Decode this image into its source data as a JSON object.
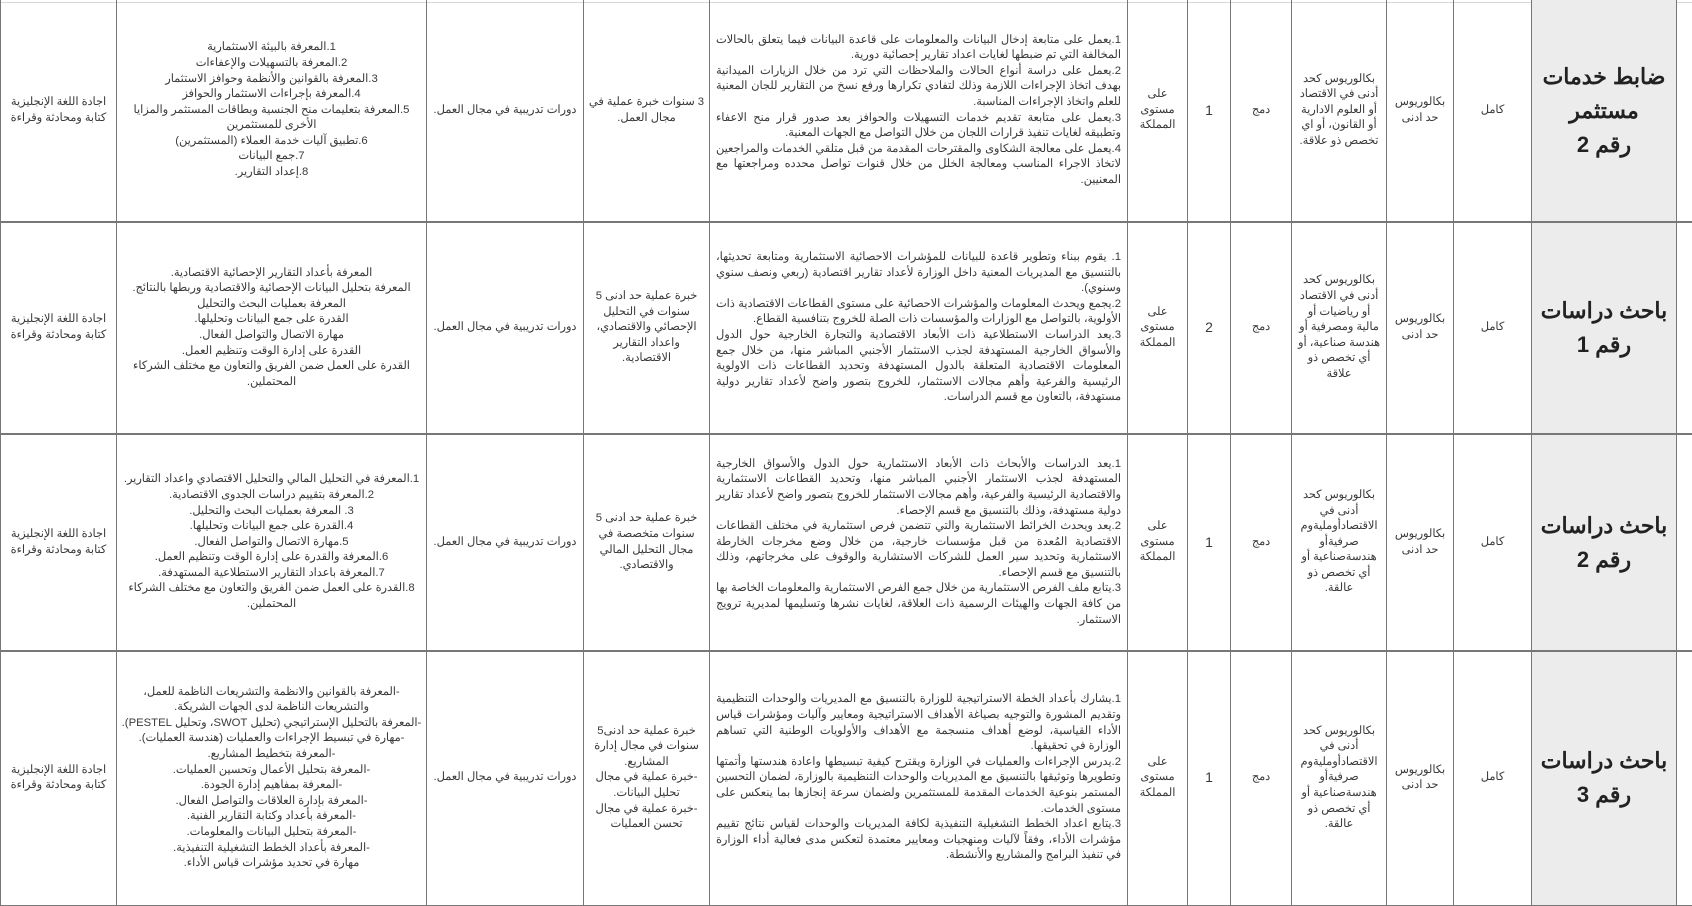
{
  "colors": {
    "title_bg": "#ececec",
    "border": "#777777",
    "text": "#3a3a3a"
  },
  "rows": [
    {
      "title_lines": [
        "ضابط خدمات",
        "مستثمر",
        "رقم 2"
      ],
      "type": "كامل",
      "qualification": "بكالوريوس حد ادنى",
      "specialization": "بكالوريوس كحد أدنى في الاقتصاد أو العلوم الادارية أو القانون، أو اي تخصص ذو علاقة.",
      "merge": "دمج",
      "count": "1",
      "location": "على مستوى المملكة",
      "tasks": [
        "1.يعمل على متابعة إدخال البيانات والمعلومات على قاعدة البيانات فيما يتعلق بالحالات المخالفة التي تم ضبطها لغايات اعداد تقارير إحصائية دورية.",
        "2.يعمل على دراسة أنواع الحالات والملاحظات التي ترد من خلال الزيارات الميدانية بهدف اتخاذ الإجراءات اللازمة وذلك لتفادي تكرارها ورفع نسخ من التقارير للجان المعنية للعلم واتخاذ الإجراءات المناسبة.",
        "3.يعمل على متابعة تقديم خدمات التسهيلات والحوافز بعد صدور قرار منح الاعفاء وتطبيقه لغايات تنفيذ قرارات اللجان من خلال التواصل مع الجهات المعنية.",
        "4.يعمل  على معالجة الشكاوى والمقترحات المقدمة من قبل متلقي الخدمات والمراجعين لاتخاذ الاجراء المناسب ومعالجة الخلل من خلال قنوات تواصل محدده ومراجعتها مع المعنيين."
      ],
      "experience": [
        "3 سنوات خبرة عملية في مجال العمل."
      ],
      "training": "دورات تدريبية في مجال العمل.",
      "skills": [
        "1.المعرفة بالبيئة الاستثمارية",
        "2.المعرفة بالتسهيلات والإعفاءات",
        "3.المعرفة بالقوانين والأنظمة وحوافز الاستثمار",
        "4.المعرفة بإجراءات الاستثمار والحوافز",
        "5.المعرفة بتعليمات منح الجنسية وبطاقات المستثمر والمزايا الأخرى للمستثمرين",
        "6.تطبيق آليات خدمة العملاء (المستثمرين)",
        "7.جمع البيانات",
        "8.إعداد التقارير."
      ],
      "language": "اجادة اللغة الإنجليزية كتابة ومحادثة وقراءة"
    },
    {
      "title_lines": [
        "باحث دراسات",
        "رقم 1"
      ],
      "type": "كامل",
      "qualification": "بكالوريوس حد ادنى",
      "specialization": "بكالوريوس كحد أدنى في الاقتصاد أو رياضيات أو مالية ومصرفية أو هندسة صناعية، أو أي تخصص ذو علاقة",
      "merge": "دمج",
      "count": "2",
      "location": "على مستوى المملكة",
      "tasks": [
        "1. يقوم ببناء وتطوير قاعدة للبيانات للمؤشرات الاحصائية الاستثمارية ومتابعة تحديثها، بالتنسيق مع المديريات المعنية داخل الوزارة لأعداد تقارير اقتصادية (ربعي ونصف سنوي وسنوي).",
        "2.يجمع ويحدث المعلومات والمؤشرات الاحصائية على مستوى القطاعات الاقتصادية ذات الأولوية، بالتواصل مع الوزارات والمؤسسات ذات الصلة للخروج بتنافسية القطاع.",
        "3.يعد الدراسات الاستطلاعية ذات الأبعاد الاقتصادية والتجارة الخارجية حول الدول والأسواق الخارجية المستهدفة لجذب الاستثمار الأجنبي المباشر منها، من خلال جمع المعلومات الاقتصادية المتعلقة بالدول المستهدفة وتحديد القطاعات ذات الاولوية الرئيسية والفرعية وأهم مجالات الاستثمار، للخروج بتصور واضح لأعداد تقارير دولية مستهدفة، بالتعاون مع قسم الدراسات."
      ],
      "experience": [
        "خبرة عملية حد ادنى 5 سنوات في التحليل الإحصائي والاقتصادي، واعداد التقارير الاقتصادية."
      ],
      "training": "دورات تدريبية في مجال العمل.",
      "skills": [
        "المعرفة بأعداد التقارير الإحصائية الاقتصادية.",
        "المعرفة بتحليل البيانات الإحصائية والاقتصادية وربطها بالنتائج.",
        "المعرفة بعمليات البحث والتحليل",
        "القدرة على جمع البيانات وتحليلها.",
        "مهارة الاتصال والتواصل الفعال.",
        "القدرة على إدارة الوقت وتنظيم العمل.",
        "القدرة على العمل ضمن الفريق والتعاون مع مختلف الشركاء المحتملين."
      ],
      "language": "اجادة اللغة الإنجليزية كتابة ومحادثة وقراءة"
    },
    {
      "title_lines": [
        "باحث دراسات",
        "رقم 2"
      ],
      "type": "كامل",
      "qualification": "بكالوريوس حد ادنى",
      "specialization": "بكالوريوس كحد أدنى في الاقتصادأومليةوم صرفيةأو هندسةصناعية أو أي تخصص ذو عالقة.",
      "merge": "دمج",
      "count": "1",
      "location": "على مستوى المملكة",
      "tasks": [
        "1.يعد الدراسات والأبحاث ذات الأبعاد الاستثمارية حول الدول والأسواق الخارجية المستهدفة لجذب الاستثمار الأجنبي المباشر منها، وتحديد القطاعات الاستثمارية والاقتصادية الرئيسية والفرعية، وأهم مجالات الاستثمار للخروج بتصور واضح لأعداد تقارير دولية مستهدفة، وذلك بالتنسيق مع قسم الإحصاء.",
        "2.يعد ويحدث الخرائط الاستثمارية والتي تتضمن فرص استثمارية في مختلف القطاعات الاقتصادية المُعدة من قبل مؤسسات خارجية، من خلال وضع مخرجات الخارطة الاستثمارية وتحديد سير العمل للشركات الاستشارية والوقوف على مخرجاتهم، وذلك بالتنسيق مع قسم الإحصاء.",
        "3.يتابع ملف الفرص الاستثمارية من خلال جمع الفرص الاستثمارية والمعلومات الخاصة بها من كافة الجهات والهيئات الرسمية ذات العلاقة، لغايات نشرها وتسليمها لمديرية ترويج الاستثمار."
      ],
      "experience": [
        "خبرة عملية حد ادنى 5 سنوات متخصصة في مجال التحليل المالي والاقتصادي."
      ],
      "training": "دورات تدريبية في مجال العمل.",
      "skills": [
        "1.المعرفة في التحليل المالي  والتحليل الاقتصادي واعداد التقارير.",
        "2.المعرفة بتقييم دراسات الجدوى الاقتصادية.",
        "3. المعرفة بعمليات البحث والتحليل.",
        "4.القدرة على جمع البيانات وتحليلها.",
        "5.مهارة الاتصال والتواصل الفعال.",
        "6.المعرفة والقدرة على إدارة الوقت وتنظيم العمل.",
        "7.المعرفة باعداد التقارير الاستطلاعية المستهدفة.",
        "8.القدرة على العمل ضمن الفريق والتعاون مع مختلف الشركاء المحتملين."
      ],
      "language": "اجادة اللغة الإنجليزية كتابة ومحادثة وقراءة"
    },
    {
      "title_lines": [
        "باحث دراسات",
        "رقم 3"
      ],
      "type": "كامل",
      "qualification": "بكالوريوس حد ادنى",
      "specialization": "بكالوريوس كحد أدنى في الاقتصادأومليةوم صرفيةأو هندسةصناعية أو أي تخصص ذو عالقة.",
      "merge": "دمج",
      "count": "1",
      "location": "على مستوى المملكة",
      "tasks": [
        "1.يشارك بأعداد الخطة الاستراتيجية للوزارة بالتنسيق مع المديريات والوحدات التنظيمية وتقديم المشورة والتوجيه بصياغة الأهداف الاستراتيجية ومعايير وآليات ومؤشرات قياس الأداء القياسية، لوضع أهداف منسجمة مع الأهداف والأولويات الوطنية التي تساهم الوزارة في تحقيقها.",
        "2.يدرس الإجراءات والعمليات في الوزارة ويقترح كيفية تبسيطها واعادة هندستها وأتمتها وتطويرها وتوثيقها بالتنسيق مع المديريات والوحدات التنظيمية بالوزارة، لضمان التحسين المستمر بنوعية الخدمات المقدمة للمستثمرين ولضمان سرعة إنجازها بما ينعكس على مستوى الخدمات.",
        "3.يتابع اعداد الخطط التشغيلية التنفيذية لكافة المديريات والوحدات لقياس نتائج تقييم مؤشرات الأداء، وفقاً لآليات ومنهجيات ومعايير معتمدة لتعكس مدى فعالية أداء الوزارة في تنفيذ البرامج والمشاريع والأنشطة."
      ],
      "experience": [
        "خبرة عملية حد ادنى5 سنوات في مجال إدارة المشاريع.",
        "-خبرة عملية في مجال تحليل البيانات.",
        "-خبرة عملية في مجال تحسن العمليات"
      ],
      "training": "دورات تدريبية في مجال العمل.",
      "skills": [
        "-المعرفة بالقوانين والانظمة والتشريعات الناظمة للعمل، والتشريعات الناظمة لدى الجهات الشريكة.",
        "-المعرفة بالتحليل الإستراتيجي (تحليل SWOT، وتحليل PESTEL).",
        "-مهارة في تبسيط الإجراءات والعمليات (هندسة العمليات).",
        "-المعرفة بتخطيط المشاريع.",
        "-المعرفة بتحليل الأعمال وتحسين العمليات.",
        "-المعرفة بمفاهيم إدارة الجودة.",
        "-المعرفة بإدارة العلاقات والتواصل الفعال.",
        "-المعرفة بأعداد وكتابة التقارير الفنية.",
        "-المعرفة بتحليل البيانات والمعلومات.",
        "-المعرفة بأعداد الخطط التشغيلية التنفيذية.",
        "مهارة في تحديد مؤشرات قياس الأداء."
      ],
      "language": "اجادة اللغة الإنجليزية كتابة ومحادثة وقراءة"
    }
  ]
}
